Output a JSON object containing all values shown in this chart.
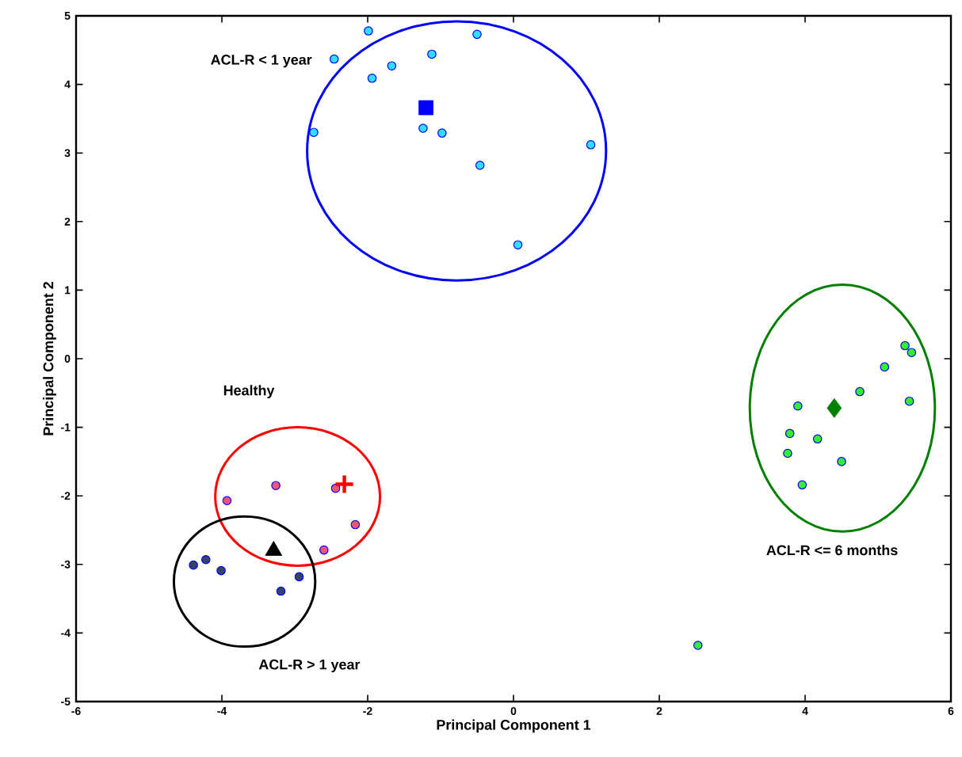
{
  "chart_data": {
    "type": "scatter",
    "xlabel": "Principal Component 1",
    "ylabel": "Principal Component 2",
    "xlim": [
      -6,
      6
    ],
    "ylim": [
      -5,
      5
    ],
    "xticks": [
      -6,
      -4,
      -2,
      0,
      2,
      4,
      6
    ],
    "yticks": [
      -5,
      -4,
      -3,
      -2,
      -1,
      0,
      1,
      2,
      3,
      4,
      5
    ],
    "grid": false,
    "series": [
      {
        "marker": "circle",
        "color": "#33ddff",
        "x": [
          -1.99,
          -0.5,
          -2.46,
          -1.12,
          -1.67,
          -1.94,
          -2.74,
          -1.24,
          -0.98,
          1.06,
          -0.46,
          0.06
        ],
        "values": [
          4.78,
          4.73,
          4.37,
          4.44,
          4.27,
          4.09,
          3.3,
          3.36,
          3.29,
          3.12,
          2.82,
          1.66
        ]
      },
      {
        "marker": "circle",
        "color": "#ee5577",
        "x": [
          -3.93,
          -3.26,
          -2.44,
          -2.17,
          -2.6
        ],
        "values": [
          -2.07,
          -1.85,
          -1.89,
          -2.42,
          -2.79
        ]
      },
      {
        "marker": "circle",
        "color": "#334466",
        "x": [
          -4.39,
          -4.22,
          -4.01,
          -2.94,
          -3.19
        ],
        "values": [
          -3.01,
          -2.93,
          -3.09,
          -3.18,
          -3.39
        ]
      },
      {
        "marker": "circle",
        "color": "#33ee33",
        "x": [
          5.37,
          5.46,
          5.09,
          4.75,
          5.43,
          3.9,
          3.79,
          4.17,
          3.76,
          4.5,
          3.96,
          2.53
        ],
        "values": [
          0.19,
          0.09,
          -0.12,
          -0.48,
          -0.62,
          -0.69,
          -1.09,
          -1.17,
          -1.38,
          -1.5,
          -1.84,
          -4.18
        ]
      },
      {
        "marker": "square",
        "color": "#0000ff",
        "x": [
          -1.2
        ],
        "values": [
          3.66
        ]
      },
      {
        "marker": "cross",
        "color": "#ff0000",
        "x": [
          -2.32
        ],
        "values": [
          -1.83
        ]
      },
      {
        "marker": "triangle",
        "color": "#000000",
        "x": [
          -3.29
        ],
        "values": [
          -2.8
        ]
      },
      {
        "marker": "diamond",
        "color": "#008000",
        "x": [
          4.4
        ],
        "values": [
          -0.72
        ]
      }
    ],
    "annotations": [
      "ACL-R < 1 year",
      "Healthy",
      "ACL-R > 1 year",
      "ACL-R <= 6 months"
    ]
  }
}
